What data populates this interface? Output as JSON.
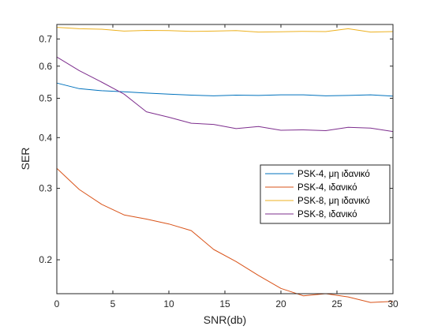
{
  "chart_data": {
    "type": "line",
    "title": "",
    "xlabel": "SNR(db)",
    "ylabel": "SER",
    "xlim": [
      0,
      30
    ],
    "ylim": [
      0.165,
      0.76
    ],
    "yscale": "log",
    "grid": false,
    "legend_position": "right",
    "xticks": [
      0,
      5,
      10,
      15,
      20,
      25,
      30
    ],
    "yticks": [
      0.2,
      0.3,
      0.4,
      0.5,
      0.6,
      0.7
    ],
    "x": [
      0,
      2,
      4,
      6,
      8,
      10,
      12,
      14,
      16,
      18,
      20,
      22,
      24,
      26,
      28,
      30
    ],
    "series": [
      {
        "name": "PSK-4, μη ιδανικό",
        "color": "#0072BD",
        "values": [
          0.545,
          0.528,
          0.522,
          0.519,
          0.515,
          0.512,
          0.509,
          0.507,
          0.509,
          0.508,
          0.51,
          0.51,
          0.507,
          0.508,
          0.51,
          0.506
        ]
      },
      {
        "name": "PSK-4, ιδανικό",
        "color": "#D95319",
        "values": [
          0.336,
          0.298,
          0.274,
          0.258,
          0.252,
          0.245,
          0.236,
          0.212,
          0.198,
          0.183,
          0.17,
          0.163,
          0.165,
          0.162,
          0.157,
          0.158
        ]
      },
      {
        "name": "PSK-8, μη ιδανικό",
        "color": "#EDB120",
        "values": [
          0.748,
          0.742,
          0.74,
          0.732,
          0.735,
          0.734,
          0.731,
          0.732,
          0.734,
          0.728,
          0.729,
          0.731,
          0.73,
          0.742,
          0.728,
          0.73
        ]
      },
      {
        "name": "PSK-8, ιδανικό",
        "color": "#7E2F8E",
        "values": [
          0.632,
          0.585,
          0.548,
          0.512,
          0.463,
          0.449,
          0.434,
          0.431,
          0.421,
          0.426,
          0.417,
          0.418,
          0.416,
          0.424,
          0.422,
          0.414
        ]
      }
    ]
  }
}
